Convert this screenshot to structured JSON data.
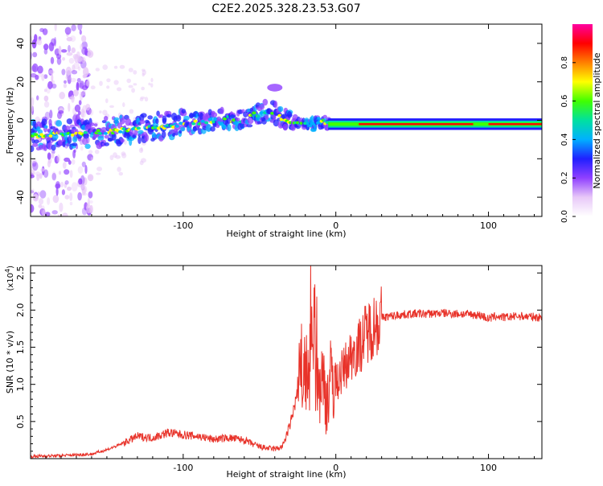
{
  "title": "C2E2.2025.328.23.53.G07",
  "chart_data": [
    {
      "type": "heatmap",
      "xlabel": "Height of straight line (km)",
      "ylabel": "Frequency (Hz)",
      "xlim": [
        -200,
        135
      ],
      "ylim": [
        -50,
        50
      ],
      "xticks": [
        -100,
        0,
        100
      ],
      "yticks": [
        -40,
        -20,
        0,
        20,
        40
      ],
      "grid": false,
      "ridge": {
        "x": [
          -200,
          -170,
          -150,
          -130,
          -110,
          -100,
          -90,
          -80,
          -70,
          -65,
          -60,
          -55,
          -50,
          -45,
          -40,
          -35,
          -30,
          -25,
          -20,
          -15,
          -10,
          -5,
          0,
          20,
          50,
          80,
          95,
          100,
          110,
          135
        ],
        "y": [
          -8,
          -7,
          -6,
          -4,
          -3,
          -2,
          -1,
          0,
          1,
          -1,
          1,
          3,
          3,
          5,
          4,
          1,
          -1,
          -2,
          -2,
          -2,
          -1,
          -1,
          -2,
          -2,
          -2,
          -2,
          -2,
          -1,
          -1,
          -2
        ]
      },
      "side_blob": {
        "x": [
          -45,
          -35
        ],
        "y": [
          15,
          19
        ]
      },
      "colorbar": {
        "label": "Normalized spectral amplitude",
        "range": [
          0,
          1
        ],
        "ticks": [
          "0.0",
          "0.2",
          "0.4",
          "0.6",
          "0.8"
        ],
        "colors": [
          "#ffffff",
          "#e8c8f8",
          "#9040ff",
          "#2020ff",
          "#00b0ff",
          "#00e0a0",
          "#40ff00",
          "#ffff00",
          "#ff8000",
          "#ff0000",
          "#ff00a0"
        ]
      }
    },
    {
      "type": "line",
      "xlabel": "Height of straight line (km)",
      "ylabel": "SNR (10 * v/v)",
      "scale_label": "(x10",
      "scale_exp": "4",
      "xlim": [
        -200,
        135
      ],
      "ylim": [
        0,
        2.6
      ],
      "xticks": [
        -100,
        0,
        100
      ],
      "yticks": [
        "0.5",
        "1.0",
        "1.5",
        "2.0",
        "2.5"
      ],
      "line_color": "#e8332a",
      "series": {
        "name": "SNR",
        "x": [
          -200,
          -180,
          -160,
          -150,
          -140,
          -135,
          -130,
          -120,
          -110,
          -100,
          -90,
          -80,
          -70,
          -60,
          -55,
          -50,
          -45,
          -40,
          -35,
          -30,
          -25,
          -22,
          -20,
          -18,
          -16,
          -14,
          -12,
          -10,
          -8,
          -6,
          -4,
          -2,
          0,
          5,
          10,
          15,
          20,
          25,
          30,
          40,
          50,
          60,
          70,
          80,
          90,
          95,
          100,
          105,
          110,
          120,
          135
        ],
        "y": [
          0.03,
          0.04,
          0.06,
          0.12,
          0.2,
          0.25,
          0.3,
          0.28,
          0.35,
          0.32,
          0.3,
          0.26,
          0.28,
          0.25,
          0.2,
          0.16,
          0.14,
          0.13,
          0.16,
          0.45,
          0.9,
          1.2,
          1.1,
          1.0,
          1.3,
          1.6,
          0.9,
          1.1,
          1.0,
          0.8,
          1.0,
          1.1,
          1.0,
          1.2,
          1.4,
          1.5,
          1.7,
          1.8,
          1.9,
          1.93,
          1.95,
          1.95,
          1.96,
          1.95,
          1.94,
          1.93,
          1.88,
          1.92,
          1.9,
          1.92,
          1.9
        ]
      }
    }
  ]
}
